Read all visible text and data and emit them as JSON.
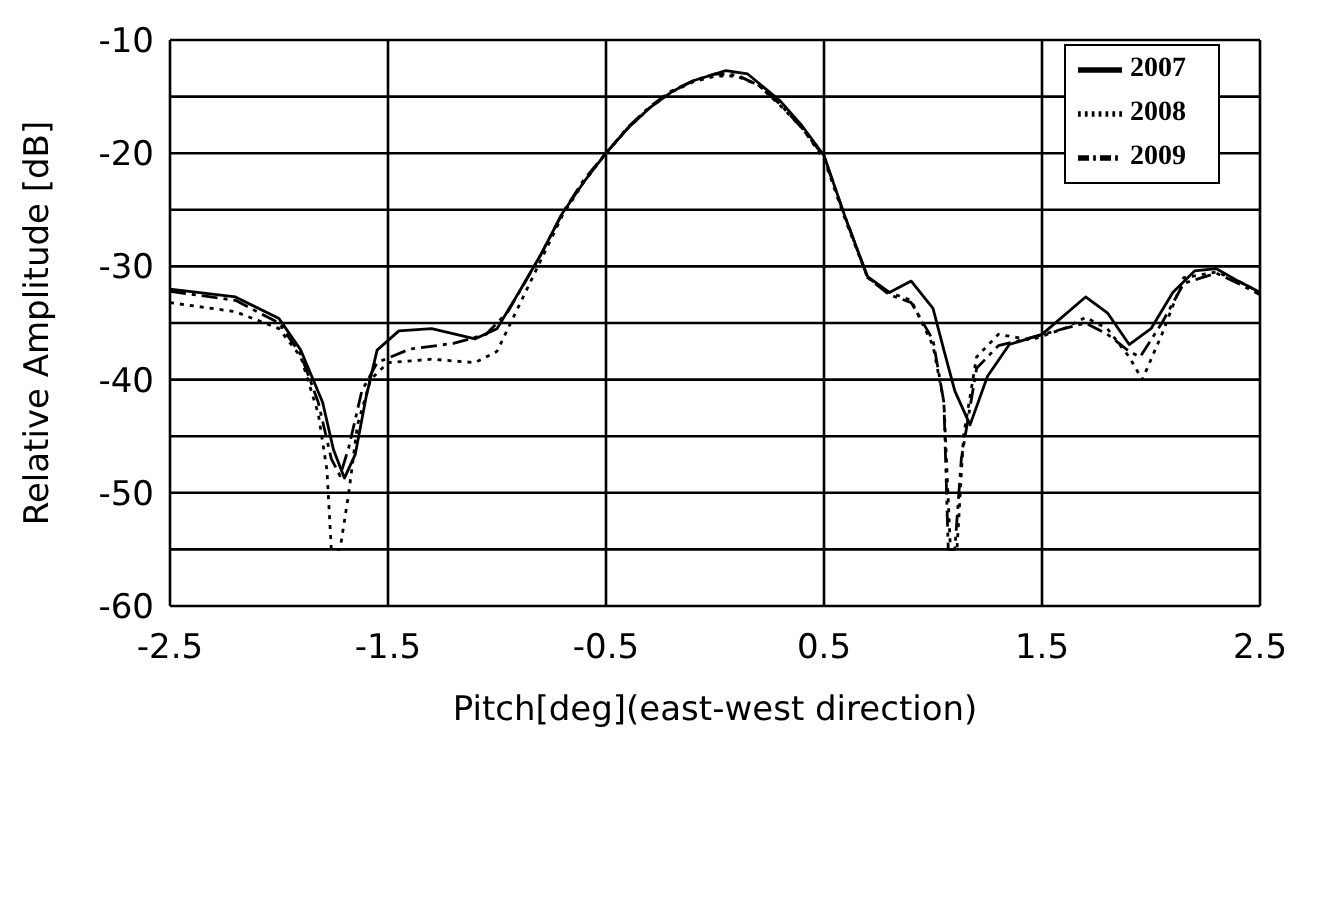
{
  "chart_data": {
    "type": "line",
    "xlabel": "Pitch[deg](east-west direction)",
    "ylabel": "Relative Amplitude [dB]",
    "xlim": [
      -2.5,
      2.5
    ],
    "xticks": [
      -2.5,
      -1.5,
      -0.5,
      0.5,
      1.5,
      2.5
    ],
    "ylim": [
      -60,
      -10
    ],
    "yticks": [
      -60,
      {
        "value": -55,
        "label": null
      },
      -50,
      {
        "value": -45,
        "label": null
      },
      -40,
      {
        "value": -35,
        "label": null
      },
      -30,
      {
        "value": -25,
        "label": null
      },
      -20,
      {
        "value": -15,
        "label": null
      },
      -10
    ],
    "grid": true,
    "legend": "top right",
    "marker": "none",
    "series": [
      {
        "name": "2007",
        "color": "#000000",
        "line_style": "solid",
        "x": [
          -2.5,
          -2.2,
          -2.0,
          -1.9,
          -1.8,
          -1.75,
          -1.7,
          -1.65,
          -1.6,
          -1.55,
          -1.45,
          -1.3,
          -1.1,
          -1.0,
          -0.9,
          -0.8,
          -0.7,
          -0.6,
          -0.5,
          -0.4,
          -0.3,
          -0.2,
          -0.1,
          0.05,
          0.15,
          0.3,
          0.4,
          0.5,
          0.6,
          0.7,
          0.8,
          0.9,
          1.0,
          1.05,
          1.1,
          1.17,
          1.25,
          1.35,
          1.5,
          1.7,
          1.8,
          1.9,
          2.0,
          2.1,
          2.2,
          2.3,
          2.4,
          2.5
        ],
        "values": [
          -32,
          -32.7,
          -34.6,
          -37.4,
          -42,
          -46.2,
          -48.7,
          -46.6,
          -41.5,
          -37.4,
          -35.7,
          -35.5,
          -36.4,
          -35.5,
          -32.3,
          -29,
          -25.3,
          -22.5,
          -20,
          -17.8,
          -16,
          -14.6,
          -13.6,
          -12.7,
          -13,
          -15.4,
          -17.6,
          -20.2,
          -25.8,
          -30.9,
          -32.3,
          -31.3,
          -33.7,
          -37.4,
          -41,
          -44,
          -39.7,
          -36.9,
          -36,
          -32.7,
          -34.1,
          -36.9,
          -35.5,
          -32.3,
          -30.4,
          -30.2,
          -31.3,
          -32.3
        ]
      },
      {
        "name": "2008",
        "color": "#000000",
        "line_style": "dotted",
        "x": [
          -2.5,
          -2.2,
          -2.0,
          -1.9,
          -1.82,
          -1.78,
          -1.76,
          -1.72,
          -1.68,
          -1.64,
          -1.58,
          -1.5,
          -1.3,
          -1.1,
          -1.0,
          -0.9,
          -0.8,
          -0.7,
          -0.6,
          -0.5,
          -0.4,
          -0.3,
          -0.2,
          -0.1,
          0.0,
          0.1,
          0.2,
          0.3,
          0.4,
          0.5,
          0.6,
          0.7,
          0.8,
          0.9,
          1.0,
          1.05,
          1.08,
          1.11,
          1.14,
          1.2,
          1.3,
          1.45,
          1.6,
          1.7,
          1.8,
          1.9,
          1.96,
          2.05,
          2.15,
          2.3,
          2.4,
          2.5
        ],
        "values": [
          -33.2,
          -34,
          -35.5,
          -38,
          -43,
          -48,
          -55,
          -55,
          -50,
          -44,
          -40,
          -38.5,
          -38.2,
          -38.5,
          -37.5,
          -33.5,
          -29.5,
          -25.5,
          -22.5,
          -20,
          -17.8,
          -16,
          -14.6,
          -13.7,
          -13.2,
          -13.2,
          -14,
          -15.8,
          -17.8,
          -20.5,
          -26,
          -31,
          -32.3,
          -33,
          -37,
          -42,
          -55,
          -55,
          -45,
          -38,
          -36,
          -36.5,
          -35.5,
          -34.5,
          -35.5,
          -38,
          -40,
          -36,
          -31,
          -30.5,
          -31.3,
          -32.3
        ]
      },
      {
        "name": "2009",
        "color": "#000000",
        "line_style": "dashed",
        "x": [
          -2.5,
          -2.2,
          -2.0,
          -1.9,
          -1.82,
          -1.76,
          -1.72,
          -1.68,
          -1.62,
          -1.55,
          -1.4,
          -1.2,
          -1.05,
          -0.95,
          -0.8,
          -0.7,
          -0.6,
          -0.5,
          -0.4,
          -0.3,
          -0.2,
          -0.1,
          0.0,
          0.1,
          0.2,
          0.3,
          0.4,
          0.5,
          0.6,
          0.7,
          0.8,
          0.9,
          1.0,
          1.05,
          1.07,
          1.1,
          1.13,
          1.2,
          1.3,
          1.45,
          1.6,
          1.7,
          1.8,
          1.9,
          1.95,
          2.05,
          2.15,
          2.3,
          2.4,
          2.5
        ],
        "values": [
          -32.2,
          -33,
          -35,
          -37.8,
          -42,
          -47,
          -48.5,
          -46,
          -41,
          -38.5,
          -37.3,
          -36.8,
          -36,
          -34,
          -29,
          -25.3,
          -22.3,
          -20,
          -17.7,
          -15.9,
          -14.5,
          -13.6,
          -13,
          -13.1,
          -14,
          -15.7,
          -17.8,
          -20.3,
          -25.8,
          -31,
          -32.5,
          -33.2,
          -36.5,
          -42,
          -55,
          -55,
          -47,
          -39,
          -37,
          -36.3,
          -35.5,
          -35,
          -36,
          -37.5,
          -38,
          -35,
          -31.5,
          -30.6,
          -31.5,
          -32.5
        ]
      }
    ]
  }
}
